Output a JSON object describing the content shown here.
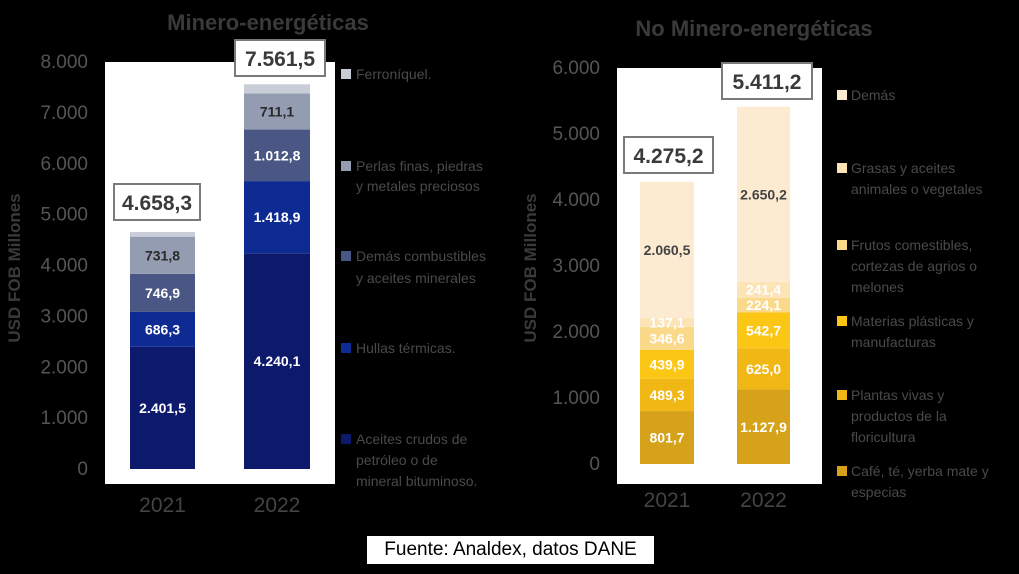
{
  "chart_data": [
    {
      "type": "bar",
      "stacked": true,
      "title": "Minero-energéticas",
      "ylabel": "USD FOB Millones",
      "ylim": [
        0,
        8000
      ],
      "yticks": [
        "0",
        "1.000",
        "2.000",
        "3.000",
        "4.000",
        "5.000",
        "6.000",
        "7.000",
        "8.000"
      ],
      "categories": [
        "2021",
        "2022"
      ],
      "totals": [
        4658.3,
        7561.5
      ],
      "total_labels": [
        "4.658,3",
        "7.561,5"
      ],
      "series": [
        {
          "name": "Aceites crudos de petróleo o de mineral bituminoso.",
          "color": "#0d1a6b",
          "text_color": "#ffffff",
          "values": [
            2401.5,
            4240.1
          ],
          "labels": [
            "2.401,5",
            "4.240,1"
          ]
        },
        {
          "name": "Hullas térmicas.",
          "color": "#0e2a93",
          "text_color": "#ffffff",
          "values": [
            686.3,
            1418.9
          ],
          "labels": [
            "686,3",
            "1.418,9"
          ]
        },
        {
          "name": "Demás combustibles y aceites minerales",
          "color": "#4a5683",
          "text_color": "#ffffff",
          "values": [
            746.9,
            1012.8
          ],
          "labels": [
            "746,9",
            "1.012,8"
          ]
        },
        {
          "name": "Perlas finas, piedras y metales preciosos",
          "color": "#949cb2",
          "text_color": "#2a2a2a",
          "values": [
            731.8,
            711.1
          ],
          "labels": [
            "731,8",
            "711,1"
          ]
        },
        {
          "name": "Ferroníquel.",
          "color": "#c9cdd8",
          "text_color": "#2a2a2a",
          "values": [
            92,
            178.6
          ],
          "labels": [
            "",
            ""
          ]
        }
      ],
      "legend": [
        "Ferroníquel.",
        "Perlas finas, piedras y metales preciosos",
        "Demás combustibles y aceites minerales",
        "Hullas térmicas.",
        "Aceites crudos de petróleo o de mineral bituminoso."
      ],
      "legend_colors": [
        "#c9cdd8",
        "#949cb2",
        "#4a5683",
        "#0e2a93",
        "#0d1a6b"
      ]
    },
    {
      "type": "bar",
      "stacked": true,
      "title": "No Minero-energéticas",
      "ylabel": "USD FOB Millones",
      "ylim": [
        0,
        6000
      ],
      "yticks": [
        "0",
        "1.000",
        "2.000",
        "3.000",
        "4.000",
        "5.000",
        "6.000"
      ],
      "categories": [
        "2021",
        "2022"
      ],
      "totals": [
        4275.2,
        5411.2
      ],
      "total_labels": [
        "4.275,2",
        "5.411,2"
      ],
      "series": [
        {
          "name": "Café, té, yerba mate y especias",
          "color": "#d6a21a",
          "text_color": "#ffffff",
          "values": [
            801.7,
            1127.9
          ],
          "labels": [
            "801,7",
            "1.127,9"
          ]
        },
        {
          "name": "Plantas vivas y productos de la floricultura",
          "color": "#f1b714",
          "text_color": "#ffffff",
          "values": [
            489.3,
            625.0
          ],
          "labels": [
            "489,3",
            "625,0"
          ]
        },
        {
          "name": "Materias plásticas y manufacturas",
          "color": "#fbc714",
          "text_color": "#ffffff",
          "values": [
            439.9,
            542.7
          ],
          "labels": [
            "439,9",
            "542,7"
          ]
        },
        {
          "name": "Frutos comestibles, cortezas de agrios o melones",
          "color": "#fbd98a",
          "text_color": "#ffffff",
          "values": [
            346.6,
            224.1
          ],
          "labels": [
            "346,6",
            "224,1"
          ]
        },
        {
          "name": "Grasas y aceites animales o vegetales",
          "color": "#fce4b7",
          "text_color": "#ffffff",
          "values": [
            137.1,
            241.4
          ],
          "labels": [
            "137,1",
            "241,4"
          ]
        },
        {
          "name": "Demás",
          "color": "#fdebd1",
          "text_color": "#444444",
          "values": [
            2060.5,
            2650.2
          ],
          "labels": [
            "2.060,5",
            "2.650,2"
          ]
        }
      ],
      "legend": [
        "Demás",
        "Grasas y aceites animales o vegetales",
        "Frutos comestibles, cortezas de agrios o melones",
        "Materias plásticas y manufacturas",
        "Plantas vivas y productos de la floricultura",
        "Café, té, yerba mate y especias"
      ],
      "legend_colors": [
        "#fdebd1",
        "#fce4b7",
        "#fbd98a",
        "#fbc714",
        "#f1b714",
        "#d6a21a"
      ]
    }
  ],
  "source": "Fuente: Analdex, datos DANE"
}
